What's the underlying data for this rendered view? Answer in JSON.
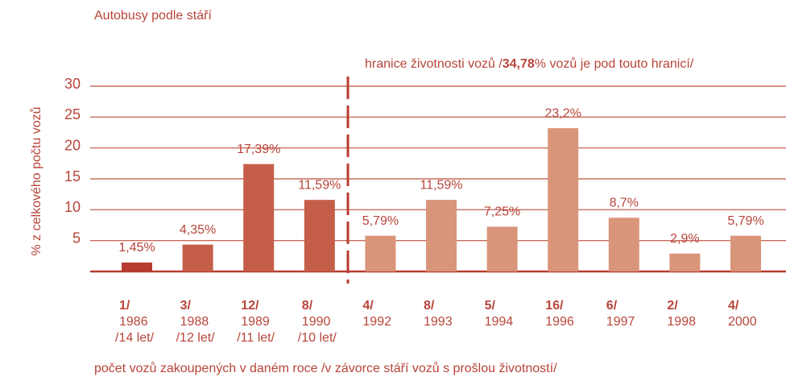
{
  "chart_data": {
    "type": "bar",
    "title": "Autobusy podle stáří",
    "annotation": [
      "hranice životnosti vozů /",
      "34,78",
      "% vozů je pod touto hranicí/"
    ],
    "ylabel": "% z celkového počtu vozů",
    "xlabel": "počet vozů zakoupených v daném roce /v závorce stáří vozů s prošlou životností/",
    "categories": [
      "1986",
      "1988",
      "1989",
      "1990",
      "1992",
      "1993",
      "1994",
      "1996",
      "1997",
      "1998",
      "2000"
    ],
    "counts": [
      "1/",
      "3/",
      "12/",
      "8/",
      "4/",
      "8/",
      "5/",
      "16/",
      "6/",
      "2/",
      "4/"
    ],
    "ages": [
      "/14 let/",
      "/12 let/",
      "/11 let/",
      "/10 let/",
      null,
      null,
      null,
      null,
      null,
      null,
      null
    ],
    "values": [
      1.45,
      4.35,
      17.39,
      11.59,
      5.79,
      11.59,
      7.25,
      23.2,
      8.7,
      2.9,
      5.79
    ],
    "value_labels": [
      "1,45%",
      "4,35%",
      "17,39%",
      "11,59%",
      "5,79%",
      "11,59%",
      "7,25%",
      "23,2%",
      "8,7%",
      "2,9%",
      "5,79%"
    ],
    "colors": [
      "#b83b30",
      "#c45e48",
      "#c45e48",
      "#c45e48",
      "#d9957a",
      "#d9957a",
      "#d9957a",
      "#d9957a",
      "#d9957a",
      "#d9957a",
      "#d9957a"
    ],
    "ylim": [
      0,
      30
    ],
    "yticks": [
      5,
      10,
      15,
      20,
      25,
      30
    ],
    "grid": true
  }
}
